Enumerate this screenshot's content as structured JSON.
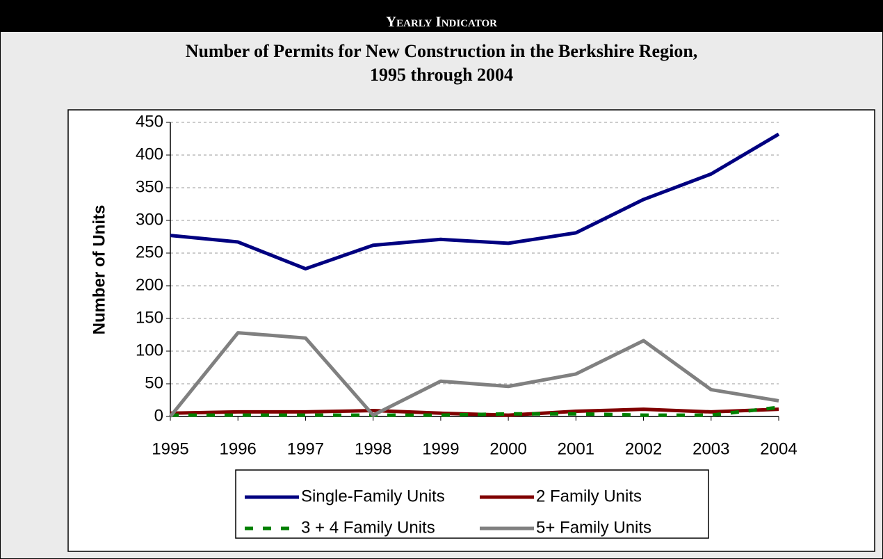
{
  "header": "Yearly Indicator",
  "chart_data": {
    "type": "line",
    "title": [
      "Number of Permits for New Construction in the Berkshire Region,",
      "1995 through 2004"
    ],
    "y_label": "Number of Units",
    "categories": [
      "1995",
      "1996",
      "1997",
      "1998",
      "1999",
      "2000",
      "2001",
      "2002",
      "2003",
      "2004"
    ],
    "series": [
      {
        "name": "Single-Family Units",
        "color": "#000080",
        "values": [
          277,
          267,
          226,
          262,
          271,
          265,
          281,
          332,
          371,
          432
        ]
      },
      {
        "name": "2 Family Units",
        "color": "#800000",
        "values": [
          5,
          7,
          7,
          9,
          5,
          2,
          8,
          11,
          7,
          11
        ]
      },
      {
        "name": "3 + 4 Family Units",
        "color": "#008000",
        "dashed": true,
        "values": [
          2,
          2,
          2,
          2,
          2,
          4,
          4,
          2,
          2,
          14
        ]
      },
      {
        "name": "5+ Family Units",
        "color": "#808080",
        "values": [
          0,
          128,
          120,
          2,
          54,
          46,
          65,
          116,
          41,
          24
        ]
      }
    ],
    "ylim": [
      0,
      450
    ],
    "yticks": [
      0,
      50,
      100,
      150,
      200,
      250,
      300,
      350,
      400,
      450
    ],
    "grid": true
  }
}
